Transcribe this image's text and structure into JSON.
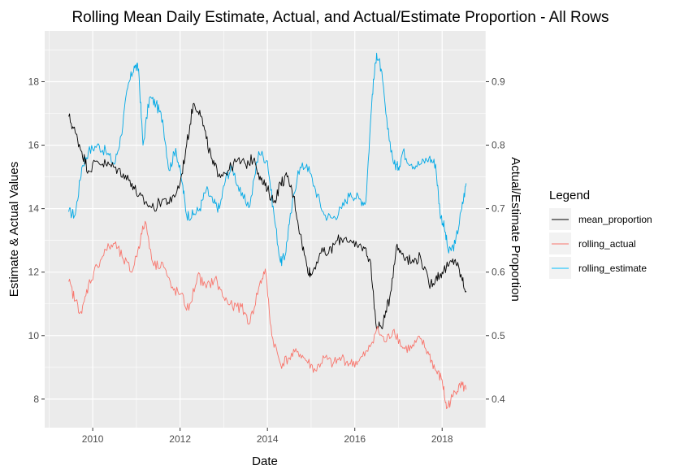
{
  "chart_data": {
    "type": "line",
    "title": "Rolling Mean Daily Estimate, Actual, and Actual/Estimate Proportion - All Rows",
    "xlabel": "Date",
    "ylabel": "Estimate & Actual Values",
    "y2label": "Actual/Estimate Proportion",
    "x_ticks": [
      "2010",
      "2012",
      "2014",
      "2016",
      "2018"
    ],
    "y_ticks": [
      "8",
      "10",
      "12",
      "14",
      "16",
      "18"
    ],
    "y2_ticks": [
      "0.4",
      "0.5",
      "0.6",
      "0.7",
      "0.8",
      "0.9"
    ],
    "xlim": [
      2008.9,
      2019.0
    ],
    "ylim": [
      7.1,
      19.6
    ],
    "y2lim": [
      0.355,
      0.98
    ],
    "grid": true,
    "legend": {
      "title": "Legend",
      "position": "right",
      "entries": [
        {
          "name": "mean_proportion",
          "color": "#000000"
        },
        {
          "name": "rolling_actual",
          "color": "#F8766D"
        },
        {
          "name": "rolling_estimate",
          "color": "#00BFFF"
        }
      ]
    },
    "series": [
      {
        "name": "rolling_estimate",
        "axis": "left",
        "color": "#00A9E6",
        "x": [
          2009.45,
          2009.6,
          2009.75,
          2009.9,
          2010.1,
          2010.3,
          2010.5,
          2010.65,
          2010.8,
          2010.95,
          2011.05,
          2011.15,
          2011.3,
          2011.45,
          2011.6,
          2011.75,
          2011.9,
          2012.05,
          2012.15,
          2012.3,
          2012.45,
          2012.6,
          2012.75,
          2012.9,
          2013.05,
          2013.2,
          2013.4,
          2013.6,
          2013.8,
          2014.0,
          2014.15,
          2014.3,
          2014.4,
          2014.5,
          2014.7,
          2014.9,
          2015.1,
          2015.3,
          2015.5,
          2015.7,
          2015.9,
          2016.1,
          2016.25,
          2016.4,
          2016.5,
          2016.6,
          2016.75,
          2016.9,
          2017.0,
          2017.1,
          2017.3,
          2017.5,
          2017.7,
          2017.85,
          2017.95,
          2018.05,
          2018.15,
          2018.3,
          2018.45,
          2018.55
        ],
        "y": [
          13.9,
          13.8,
          15.3,
          15.8,
          16.0,
          15.8,
          15.4,
          16.3,
          17.8,
          18.5,
          18.4,
          16.0,
          17.5,
          17.3,
          16.8,
          15.2,
          15.9,
          14.8,
          13.8,
          13.8,
          14.0,
          14.6,
          14.2,
          14.0,
          15.0,
          15.3,
          14.4,
          14.1,
          15.8,
          15.5,
          13.8,
          12.3,
          12.5,
          13.5,
          15.2,
          15.4,
          14.6,
          13.8,
          13.7,
          14.0,
          14.5,
          14.3,
          14.2,
          17.6,
          18.9,
          18.4,
          16.5,
          15.4,
          15.3,
          15.8,
          15.4,
          15.4,
          15.6,
          15.4,
          13.9,
          13.4,
          12.6,
          12.9,
          14.0,
          14.8
        ]
      },
      {
        "name": "mean_proportion",
        "axis": "right",
        "color": "#000000",
        "x": [
          2009.45,
          2009.6,
          2009.75,
          2009.9,
          2010.1,
          2010.3,
          2010.5,
          2010.7,
          2010.9,
          2011.05,
          2011.2,
          2011.4,
          2011.6,
          2011.8,
          2012.0,
          2012.15,
          2012.3,
          2012.45,
          2012.6,
          2012.75,
          2012.9,
          2013.1,
          2013.3,
          2013.5,
          2013.7,
          2013.85,
          2014.0,
          2014.15,
          2014.3,
          2014.45,
          2014.6,
          2014.75,
          2014.9,
          2015.0,
          2015.2,
          2015.4,
          2015.6,
          2015.8,
          2016.0,
          2016.2,
          2016.35,
          2016.5,
          2016.65,
          2016.8,
          2016.95,
          2017.1,
          2017.3,
          2017.5,
          2017.7,
          2017.85,
          2018.0,
          2018.15,
          2018.3,
          2018.45,
          2018.55
        ],
        "y": [
          0.845,
          0.82,
          0.79,
          0.76,
          0.775,
          0.77,
          0.765,
          0.755,
          0.74,
          0.72,
          0.71,
          0.7,
          0.715,
          0.71,
          0.74,
          0.8,
          0.865,
          0.855,
          0.81,
          0.77,
          0.755,
          0.76,
          0.775,
          0.77,
          0.78,
          0.745,
          0.73,
          0.71,
          0.74,
          0.75,
          0.72,
          0.66,
          0.61,
          0.595,
          0.63,
          0.63,
          0.65,
          0.655,
          0.64,
          0.64,
          0.62,
          0.51,
          0.52,
          0.56,
          0.64,
          0.63,
          0.615,
          0.625,
          0.58,
          0.59,
          0.6,
          0.61,
          0.62,
          0.59,
          0.57
        ]
      },
      {
        "name": "rolling_actual",
        "axis": "left",
        "color": "#F8766D",
        "x": [
          2009.45,
          2009.6,
          2009.75,
          2009.9,
          2010.1,
          2010.3,
          2010.5,
          2010.7,
          2010.9,
          2011.05,
          2011.2,
          2011.4,
          2011.6,
          2011.8,
          2012.0,
          2012.2,
          2012.4,
          2012.6,
          2012.8,
          2013.0,
          2013.2,
          2013.4,
          2013.6,
          2013.8,
          2013.95,
          2014.1,
          2014.3,
          2014.5,
          2014.7,
          2014.9,
          2015.1,
          2015.3,
          2015.5,
          2015.7,
          2015.9,
          2016.1,
          2016.3,
          2016.5,
          2016.7,
          2016.9,
          2017.1,
          2017.3,
          2017.5,
          2017.7,
          2017.85,
          2018.0,
          2018.1,
          2018.25,
          2018.4,
          2018.55
        ],
        "y": [
          11.7,
          11.1,
          10.7,
          11.6,
          12.2,
          12.7,
          12.9,
          12.4,
          12.0,
          12.8,
          13.6,
          12.2,
          12.3,
          11.5,
          11.3,
          10.8,
          11.9,
          11.5,
          11.8,
          11.2,
          10.9,
          10.9,
          10.4,
          11.5,
          12.1,
          10.0,
          9.1,
          9.3,
          9.5,
          9.2,
          8.9,
          9.3,
          9.1,
          9.3,
          9.1,
          9.2,
          9.5,
          10.2,
          9.8,
          10.2,
          9.6,
          9.6,
          9.9,
          9.4,
          8.9,
          8.6,
          7.7,
          8.1,
          8.5,
          8.3
        ]
      }
    ]
  }
}
